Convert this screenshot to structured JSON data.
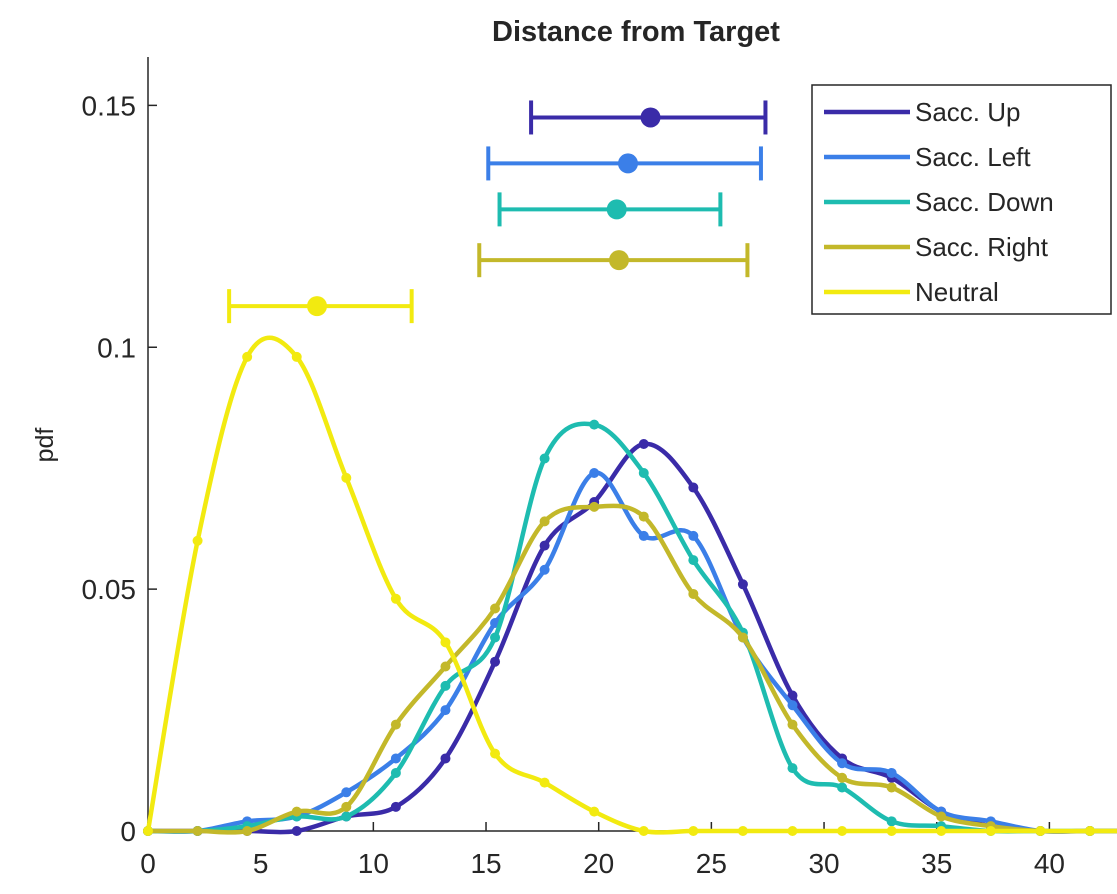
{
  "chart_data": {
    "type": "line",
    "title": "Distance from Target",
    "xlabel": "",
    "ylabel": "pdf",
    "xlim": [
      0,
      43
    ],
    "ylim": [
      0,
      0.16
    ],
    "x_ticks": [
      0,
      5,
      10,
      15,
      20,
      25,
      30,
      35,
      40
    ],
    "x_tick_labels": [
      "0",
      "5",
      "10",
      "15",
      "20",
      "25",
      "30",
      "35",
      "40"
    ],
    "y_ticks": [
      0,
      0.05,
      0.1,
      0.15
    ],
    "y_tick_labels": [
      "0",
      "0.05",
      "0.1",
      "0.15"
    ],
    "grid": false,
    "legend_position": "top-right",
    "x": [
      0,
      2.2,
      4.4,
      6.6,
      8.8,
      11.0,
      13.2,
      15.4,
      17.6,
      19.8,
      22.0,
      24.2,
      26.4,
      28.6,
      30.8,
      33.0,
      35.2,
      37.4,
      39.6,
      41.8,
      43.0
    ],
    "series": [
      {
        "name": "Sacc. Up",
        "color": "#3a2ba8",
        "values": [
          0,
          0,
          0,
          0,
          0.003,
          0.005,
          0.015,
          0.035,
          0.059,
          0.068,
          0.08,
          0.071,
          0.051,
          0.028,
          0.015,
          0.011,
          0.004,
          0.001,
          0,
          0,
          0
        ],
        "errorbar": {
          "y": 0.1475,
          "mean": 22.3,
          "low": 17.0,
          "high": 27.4
        }
      },
      {
        "name": "Sacc. Left",
        "color": "#3b7fe8",
        "values": [
          0,
          0,
          0.002,
          0.003,
          0.008,
          0.015,
          0.025,
          0.043,
          0.054,
          0.074,
          0.061,
          0.061,
          0.04,
          0.026,
          0.014,
          0.012,
          0.004,
          0.002,
          0,
          0,
          0
        ],
        "errorbar": {
          "y": 0.138,
          "mean": 21.3,
          "low": 15.1,
          "high": 27.2
        }
      },
      {
        "name": "Sacc. Down",
        "color": "#1ebcb0",
        "values": [
          0,
          0,
          0.001,
          0.003,
          0.003,
          0.012,
          0.03,
          0.04,
          0.077,
          0.084,
          0.074,
          0.056,
          0.041,
          0.013,
          0.009,
          0.002,
          0.001,
          0,
          0,
          0,
          0
        ],
        "errorbar": {
          "y": 0.1285,
          "mean": 20.8,
          "low": 15.6,
          "high": 25.4
        }
      },
      {
        "name": "Sacc. Right",
        "color": "#c3b82a",
        "values": [
          0,
          0,
          0,
          0.004,
          0.005,
          0.022,
          0.034,
          0.046,
          0.064,
          0.067,
          0.065,
          0.049,
          0.04,
          0.022,
          0.011,
          0.009,
          0.003,
          0.001,
          0,
          0,
          0
        ],
        "errorbar": {
          "y": 0.118,
          "mean": 20.9,
          "low": 14.7,
          "high": 26.6
        }
      },
      {
        "name": "Neutral",
        "color": "#f2ea10",
        "values": [
          0,
          0.06,
          0.098,
          0.098,
          0.073,
          0.048,
          0.039,
          0.016,
          0.01,
          0.004,
          0,
          0,
          0,
          0,
          0,
          0,
          0,
          0,
          0,
          0,
          0
        ],
        "errorbar": {
          "y": 0.1085,
          "mean": 7.5,
          "low": 3.6,
          "high": 11.7
        }
      }
    ]
  }
}
